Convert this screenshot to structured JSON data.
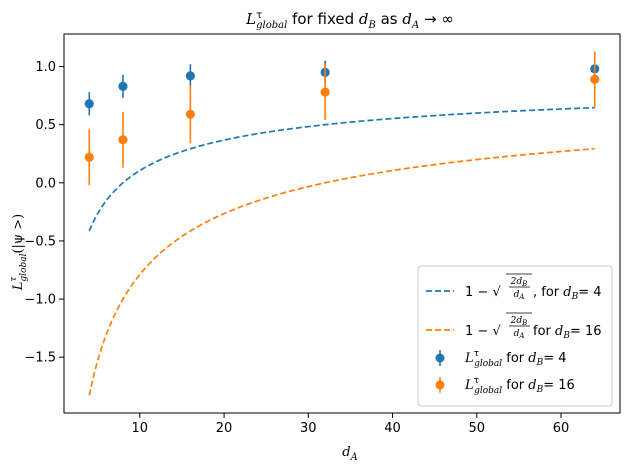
{
  "chart_data": {
    "type": "scatter",
    "title": "L_global^τ for fixed d_B as d_A → ∞",
    "xlabel": "d_A",
    "ylabel": "L_global^τ(|ψ>)",
    "xlim": [
      1,
      67
    ],
    "ylim": [
      -1.98,
      1.28
    ],
    "x_ticks": [
      10,
      20,
      30,
      40,
      50,
      60
    ],
    "x_tick_labels": [
      "10",
      "20",
      "30",
      "40",
      "50",
      "60"
    ],
    "y_ticks": [
      1.0,
      0.5,
      0.0,
      -0.5,
      -1.0,
      -1.5
    ],
    "y_tick_labels": [
      "1.0",
      "0.5",
      "0.0",
      "−0.5",
      "−1.0",
      "−1.5"
    ],
    "grid": false,
    "legend_position": "lower-right",
    "series": [
      {
        "name": "1 − √(2d_B/d_A), for d_B = 4",
        "kind": "curve",
        "style": "dashed",
        "color": "#1f77b4",
        "dB": 4,
        "x_range": [
          4,
          64
        ]
      },
      {
        "name": "1 − √(2d_B/d_A) for d_B = 16",
        "kind": "curve",
        "style": "dashed",
        "color": "#ff7f0e",
        "dB": 16,
        "x_range": [
          4,
          64
        ]
      },
      {
        "name": "L_global^τ for d_B = 4",
        "kind": "errorbar",
        "color": "#1f77b4",
        "x": [
          4,
          8,
          16,
          32,
          64
        ],
        "y": [
          0.68,
          0.83,
          0.92,
          0.95,
          0.98
        ],
        "err": [
          0.1,
          0.1,
          0.1,
          0.1,
          0.06
        ]
      },
      {
        "name": "L_global^τ for d_B = 16",
        "kind": "errorbar",
        "color": "#ff7f0e",
        "x": [
          4,
          8,
          16,
          32,
          64
        ],
        "y": [
          0.22,
          0.37,
          0.59,
          0.78,
          0.89
        ],
        "err": [
          0.24,
          0.24,
          0.25,
          0.24,
          0.24
        ]
      }
    ],
    "legend": {
      "curve_label_dB4_prefix": "1 − ",
      "curve_label_dB4_suffix": ", for ",
      "curve_label_dB16_suffix": " for ",
      "sqrt_numerator": "2d",
      "sqrt_denominator": "d",
      "sub_B": "B",
      "sub_A": "A",
      "sub_global": "global",
      "sup_tau": "τ",
      "L": "L",
      "for_text": " for ",
      "dB_eq4": "= 4",
      "dB_eq16": "= 16",
      "d": "d"
    },
    "title_parts": {
      "L": "L",
      "sup": "τ",
      "sub": "global",
      "middle": " for fixed ",
      "d": "d",
      "sub_B": "B",
      "as_text": " as ",
      "sub_A": "A",
      "arrow_inf": " → ∞"
    },
    "xlabel_parts": {
      "d": "d",
      "sub": "A"
    },
    "ylabel_parts": {
      "L": "L",
      "sup": "τ",
      "sub": "global",
      "rest": "(|ψ >)"
    }
  }
}
